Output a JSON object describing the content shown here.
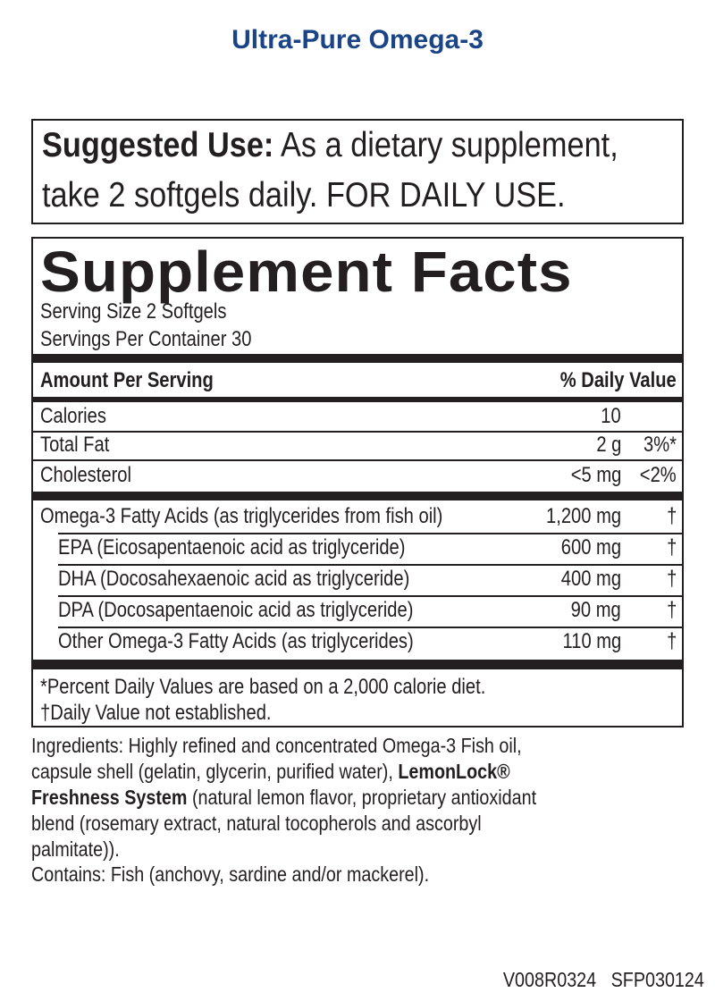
{
  "product_title": "Ultra-Pure Omega-3",
  "suggested_use": {
    "label": "Suggested Use:",
    "line1": "As a dietary supplement,",
    "line2": "take 2 softgels daily. FOR DAILY USE."
  },
  "facts": {
    "title": "Supplement Facts",
    "serving_size": "Serving Size 2 Softgels",
    "servings_per_container": "Servings Per Container 30",
    "header_amount": "Amount Per Serving",
    "header_dv": "% Daily Value",
    "basic_rows": [
      {
        "name": "Calories",
        "amount": "10",
        "dv": ""
      },
      {
        "name": "Total Fat",
        "amount": "2 g",
        "dv": "3%*"
      },
      {
        "name": "Cholesterol",
        "amount": "<5 mg",
        "dv": "<2%"
      }
    ],
    "omega_rows": [
      {
        "name": "Omega-3 Fatty Acids (as triglycerides from fish oil)",
        "amount": "1,200 mg",
        "dv": "†"
      },
      {
        "name": "EPA (Eicosapentaenoic acid as triglyceride)",
        "amount": "600 mg",
        "dv": "†"
      },
      {
        "name": "DHA (Docosahexaenoic acid as triglyceride)",
        "amount": "400 mg",
        "dv": "†"
      },
      {
        "name": "DPA (Docosapentaenoic acid as triglyceride)",
        "amount": "90 mg",
        "dv": "†"
      },
      {
        "name": "Other Omega-3 Fatty Acids (as triglycerides)",
        "amount": "110 mg",
        "dv": "†"
      }
    ],
    "footnote1": "*Percent Daily Values are based on a 2,000 calorie diet.",
    "footnote2": "†Daily Value not established."
  },
  "ingredients": {
    "line1": "Ingredients: Highly refined and concentrated Omega-3 Fish oil,",
    "line2a": "capsule shell (gelatin, glycerin, purified water), ",
    "line2b": "LemonLock®",
    "line3a": "Freshness System",
    "line3b": " (natural lemon flavor, proprietary antioxidant",
    "line4": "blend (rosemary extract, natural tocopherols and ascorbyl",
    "line5": "palmitate))."
  },
  "contains": "Contains: Fish (anchovy, sardine and/or mackerel).",
  "codes": {
    "version": "V008R0324",
    "sfp": "SFP030124"
  },
  "colors": {
    "title": "#1b4487",
    "text": "#231f20"
  }
}
